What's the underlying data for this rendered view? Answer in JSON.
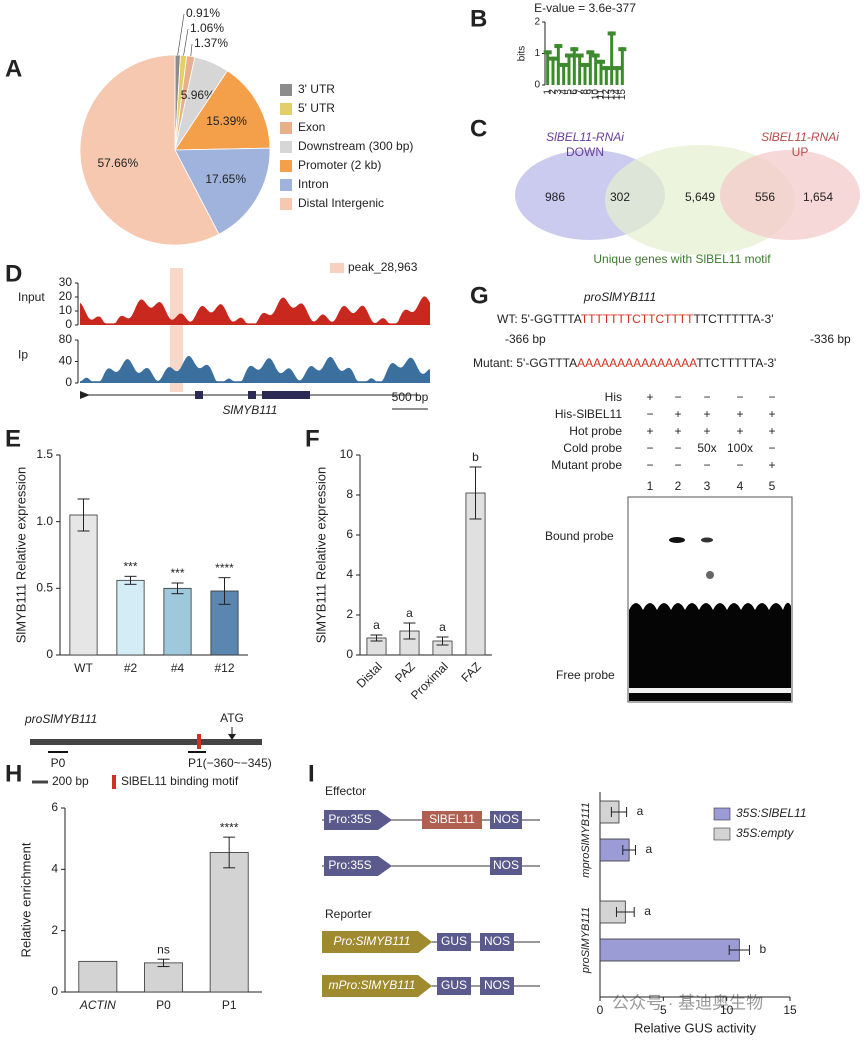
{
  "panel_labels": [
    "A",
    "B",
    "C",
    "D",
    "E",
    "F",
    "G",
    "H",
    "I"
  ],
  "chart_data": [
    {
      "type": "pie",
      "categories": [
        "3' UTR",
        "5' UTR",
        "Exon",
        "Downstream (300 bp)",
        "Promoter (2 kb)",
        "Intron",
        "Distal Intergenic"
      ],
      "values": [
        0.91,
        1.06,
        1.37,
        5.96,
        15.39,
        17.65,
        57.66
      ],
      "value_labels": [
        "0.91%",
        "1.06%",
        "1.37%",
        "5.96%",
        "15.39%",
        "17.65%",
        "57.66%"
      ],
      "colors": [
        "#8c8c8c",
        "#e3cf6a",
        "#e8b08a",
        "#d6d6d6",
        "#f4a04a",
        "#9fb3dd",
        "#f7c8b0"
      ]
    },
    {
      "type": "logo",
      "title": "E-value = 3.6e-377",
      "y_label": "bits",
      "categories": [
        "1",
        "2",
        "3",
        "4",
        "5",
        "6",
        "7",
        "8",
        "9",
        "10",
        "11",
        "12",
        "13",
        "14",
        "15"
      ],
      "values": [
        1.1,
        0.9,
        1.3,
        0.7,
        1.0,
        1.2,
        1.0,
        0.7,
        1.1,
        1.0,
        0.8,
        0.6,
        1.7,
        0.6,
        1.2
      ],
      "ylim": [
        0,
        2
      ],
      "yticks": [
        0,
        1,
        2
      ],
      "color": "#3d8a2e"
    },
    {
      "type": "bar",
      "y_label": "SlMYB111 Relative expression",
      "categories": [
        "WT",
        "#2",
        "#4",
        "#12"
      ],
      "values": [
        1.05,
        0.56,
        0.5,
        0.48
      ],
      "errors": [
        0.12,
        0.03,
        0.04,
        0.1
      ],
      "annotations": [
        null,
        "***",
        "***",
        "****"
      ],
      "colors": [
        "#e6e6e6",
        "#d4ecf5",
        "#9ec8dc",
        "#5b86b0"
      ],
      "ylim": [
        0,
        1.5
      ],
      "yticks": [
        0,
        0.5,
        {
          "value": 1,
          "label": "1.0"
        },
        1.5
      ]
    },
    {
      "type": "bar",
      "y_label": "SlMYB111 Relative expression",
      "categories": [
        "Distal",
        "PAZ",
        "Proximal",
        "FAZ"
      ],
      "values": [
        0.85,
        1.2,
        0.7,
        8.1
      ],
      "errors": [
        0.15,
        0.4,
        0.2,
        1.3
      ],
      "annotations": [
        "a",
        "a",
        "a",
        "b"
      ],
      "color": "#e0e0e0",
      "ylim": [
        0,
        10
      ],
      "yticks": [
        0,
        2,
        4,
        6,
        8,
        10
      ]
    },
    {
      "type": "bar",
      "y_label": "Relative enrichment",
      "categories": [
        "ACTIN",
        "P0",
        "P1"
      ],
      "values": [
        1,
        0.95,
        4.55
      ],
      "errors": [
        null,
        0.12,
        0.5
      ],
      "annotations": [
        null,
        "ns",
        "****"
      ],
      "color": "#d3d3d3",
      "ylim": [
        0,
        6
      ],
      "yticks": [
        0,
        2,
        4,
        6
      ]
    },
    {
      "type": "hbar",
      "groups": [
        "mproSlMYB111",
        "proSlMYB111"
      ],
      "x_label": "Relative GUS activity",
      "xlim": [
        0,
        15
      ],
      "xticks": [
        0,
        5,
        10,
        15
      ],
      "series": [
        {
          "name": "35S:SlBEL11",
          "color": "#9b9bd6",
          "values": [
            2.3,
            11.0
          ],
          "errors": [
            0.5,
            0.8
          ],
          "annotations": [
            "a",
            "b"
          ]
        },
        {
          "name": "35S:empty",
          "color": "#d3d3d3",
          "values": [
            1.5,
            2.0
          ],
          "errors": [
            0.6,
            0.7
          ],
          "annotations": [
            "a",
            "a"
          ]
        }
      ]
    }
  ],
  "venn": {
    "left": {
      "label": "SlBEL11-RNAi",
      "sublabel": "DOWN"
    },
    "right": {
      "label": "SlBEL11-RNAi",
      "sublabel": "UP"
    },
    "middle": "Unique genes with SlBEL11 motif",
    "counts": [
      "986",
      "302",
      "5,649",
      "556",
      "1,654"
    ]
  },
  "tracks": {
    "legend": "peak_28,963",
    "gene": "SlMYB111",
    "scale": "500 bp",
    "input": {
      "label": "Input",
      "ylim": [
        0,
        30
      ],
      "yticks": [
        0,
        10,
        20,
        30
      ]
    },
    "ip": {
      "label": "Ip",
      "ylim": [
        0,
        80
      ],
      "yticks": [
        0,
        40,
        80
      ]
    }
  },
  "emsa": {
    "title": "proSlMYB111",
    "wt_prefix": "WT: 5'-GGTTTA",
    "wt_motif": "TTTTTTTCTTCTTTT",
    "wt_suffix": "TTCTTTTTA-3'",
    "pos_left": "-366 bp",
    "pos_right": "-336 bp",
    "mut_prefix": "Mutant: 5'-GGTTTA",
    "mut_motif": "AAAAAAAAAAAAAAA",
    "mut_suffix": "TTCTTTTTA-3'",
    "rows": [
      {
        "label": "His",
        "cells": [
          "+",
          "−",
          "−",
          "−",
          "−"
        ]
      },
      {
        "label": "His-SlBEL11",
        "cells": [
          "−",
          "+",
          "+",
          "+",
          "+"
        ]
      },
      {
        "label": "Hot probe",
        "cells": [
          "+",
          "+",
          "+",
          "+",
          "+"
        ]
      },
      {
        "label": "Cold probe",
        "cells": [
          "−",
          "−",
          "50x",
          "100x",
          "−"
        ]
      },
      {
        "label": "Mutant probe",
        "cells": [
          "−",
          "−",
          "−",
          "−",
          "+"
        ]
      }
    ],
    "lanes": [
      "1",
      "2",
      "3",
      "4",
      "5"
    ],
    "bound": "Bound probe",
    "free": "Free probe"
  },
  "h_diagram": {
    "promoter": "proSlMYB111",
    "atg": "ATG",
    "p0": "P0",
    "p1": "P1(−360~−345)",
    "scale": "200 bp",
    "motif": "SlBEL11 binding motif"
  },
  "i_diagram": {
    "effector": "Effector",
    "reporter": "Reporter",
    "pro35s": "Pro:35S",
    "bel": "SlBEL11",
    "nos": "NOS",
    "pro": "Pro:SlMYB111",
    "mpro": "mPro:SlMYB111",
    "gus": "GUS"
  },
  "watermark": "公众号 · 基迪奥生物"
}
